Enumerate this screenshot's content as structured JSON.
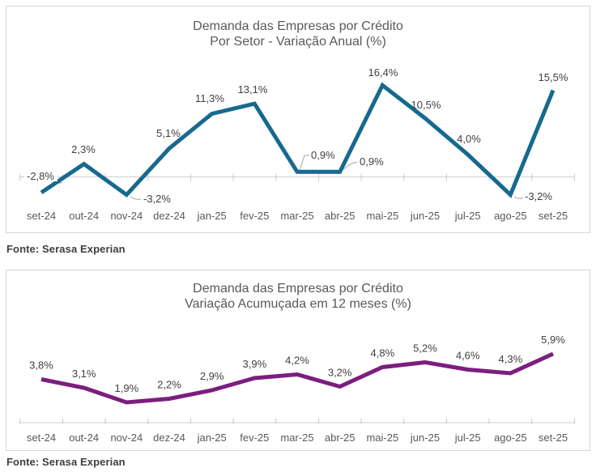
{
  "colors": {
    "annual_line": "#17698f",
    "accumulated_line": "#7c1e7e",
    "axis": "#d0cece",
    "tick": "#c9c7c7",
    "leader": "#a6a6a6",
    "data_label": "#404040",
    "axis_label": "#595959",
    "title": "#595959",
    "card_border": "#d6d6d6"
  },
  "chart_data": [
    {
      "type": "line",
      "title": "Demanda das Empresas por Crédito",
      "subtitle": "Por Setor - Variação Anual (%)",
      "categories": [
        "set-24",
        "out-24",
        "nov-24",
        "dez-24",
        "jan-25",
        "fev-25",
        "mar-25",
        "abr-25",
        "mai-25",
        "jun-25",
        "jul-25",
        "ago-25",
        "set-25"
      ],
      "values": [
        -2.8,
        2.3,
        -3.2,
        5.1,
        11.3,
        13.1,
        0.9,
        0.9,
        16.4,
        10.5,
        4.0,
        -3.2,
        15.5
      ],
      "point_labels": [
        "-2,8%",
        "2,3%",
        "-3,2%",
        "5,1%",
        "11,3%",
        "13,1%",
        "0,9%",
        "0,9%",
        "16,4%",
        "10,5%",
        "4,0%",
        "-3,2%",
        "15,5%"
      ],
      "line_color": "#17698f",
      "source": "Fonte: Serasa Experian",
      "xlabel": "",
      "ylabel": "",
      "legend": "none",
      "grid": "zero-axis-line-with-ticks"
    },
    {
      "type": "line",
      "title": "Demanda das Empresas por Crédito",
      "subtitle": "Variação Acumuçada em 12 meses (%)",
      "categories": [
        "set-24",
        "out-24",
        "nov-24",
        "dez-24",
        "jan-25",
        "fev-25",
        "mar-25",
        "abr-25",
        "mai-25",
        "jun-25",
        "jul-25",
        "ago-25",
        "set-25"
      ],
      "values": [
        3.8,
        3.1,
        1.9,
        2.2,
        2.9,
        3.9,
        4.2,
        3.2,
        4.8,
        5.2,
        4.6,
        4.3,
        5.9
      ],
      "point_labels": [
        "3,8%",
        "3,1%",
        "1,9%",
        "2,2%",
        "2,9%",
        "3,9%",
        "4,2%",
        "3,2%",
        "4,8%",
        "5,2%",
        "4,6%",
        "4,3%",
        "5,9%"
      ],
      "line_color": "#7c1e7e",
      "source": "Fonte: Serasa Experian",
      "xlabel": "",
      "ylabel": "",
      "legend": "none",
      "grid": "baseline-axis-with-ticks"
    }
  ]
}
